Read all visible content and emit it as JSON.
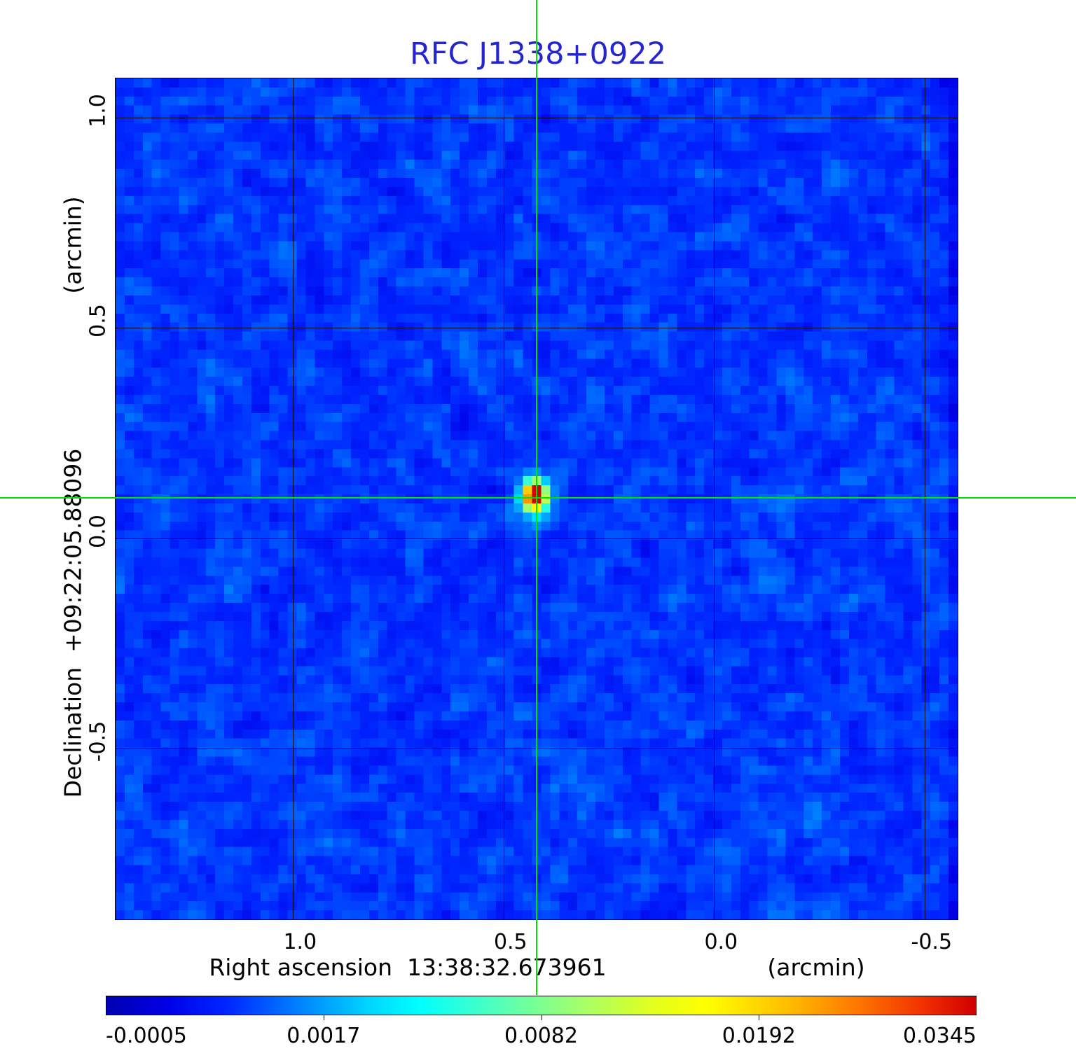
{
  "title": {
    "text": "RFC J1338+0922",
    "color": "#2525cd"
  },
  "y_axis": {
    "unit": "(arcmin)",
    "label": "Declination  +09:22:05.88096",
    "tick_labels": [
      "1.0",
      "0.5",
      "0.0",
      "-0.5"
    ]
  },
  "x_axis": {
    "unit": "(arcmin)",
    "label": "Right ascension  13:38:32.673961",
    "tick_labels": [
      "1.0",
      "0.5",
      "0.0",
      "-0.5"
    ]
  },
  "colorbar": {
    "tick_labels": [
      "-0.0005",
      "0.0017",
      "0.0082",
      "0.0192",
      "0.0345"
    ]
  },
  "chart_data": {
    "type": "heatmap",
    "title": "RFC J1338+0922",
    "xlabel": "Right ascension 13:38:32.673961 (arcmin)",
    "ylabel": "Declination +09:22:05.88096 (arcmin)",
    "x_tick_values": [
      1.0,
      0.5,
      0.0,
      -0.5
    ],
    "y_tick_values": [
      1.0,
      0.5,
      0.0,
      -0.5
    ],
    "x_range_arcmin": [
      1.4215,
      -0.5785
    ],
    "y_range_arcmin": [
      -0.9066,
      1.0934
    ],
    "grid": true,
    "grid_cells": 93,
    "colorbar_tick_values": [
      -0.0005,
      0.0017,
      0.0082,
      0.0192,
      0.0345
    ],
    "colormap": [
      [
        0,
        "#0000b2"
      ],
      [
        0.07,
        "#0000e6"
      ],
      [
        0.14,
        "#0027ff"
      ],
      [
        0.22,
        "#0080ff"
      ],
      [
        0.3,
        "#00d4ff"
      ],
      [
        0.36,
        "#00ffff"
      ],
      [
        0.46,
        "#5cffb2"
      ],
      [
        0.55,
        "#a8ff66"
      ],
      [
        0.63,
        "#e4ff1c"
      ],
      [
        0.69,
        "#ffff00"
      ],
      [
        0.78,
        "#ffc000"
      ],
      [
        0.86,
        "#ff7a00"
      ],
      [
        0.94,
        "#f03000"
      ],
      [
        1,
        "#cf0000"
      ]
    ],
    "source": {
      "ra_arcmin": 0.4265,
      "dec_arcmin": 0.1025,
      "peak": 0.0345,
      "sigma_cells_x": 0.85,
      "sigma_cells_y": 1.15
    },
    "noise": {
      "mean_norm": 0.152,
      "sigma_norm": 0.05,
      "seed": 20240613
    },
    "crosshair": {
      "ra_arcmin": 0.4215,
      "dec_arcmin": 0.0965,
      "color": "#00e100"
    }
  }
}
